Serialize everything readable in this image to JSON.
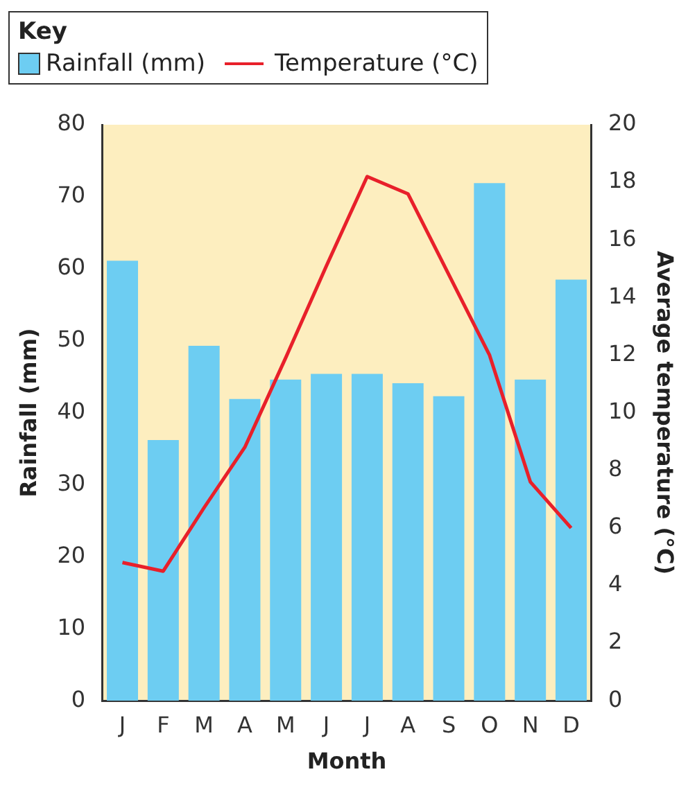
{
  "chart_data": {
    "type": "bar",
    "xlabel": "Month",
    "ylabel": "Rainfall (mm)",
    "y2label": "Average temperature (°C)",
    "legend_title": "Key",
    "legend": "top left",
    "categories": [
      "J",
      "F",
      "M",
      "A",
      "M",
      "J",
      "J",
      "A",
      "S",
      "O",
      "N",
      "D"
    ],
    "series": [
      {
        "name": "Rainfall (mm)",
        "color": "#6dcdf2",
        "values": [
          61.1,
          36.2,
          49.3,
          41.9,
          44.6,
          45.4,
          45.4,
          44.1,
          42.3,
          71.9,
          44.6,
          58.5
        ]
      },
      {
        "name": "Temperature (°C)",
        "type": "line",
        "axis": "y2",
        "color": "#e8202a",
        "values": [
          4.8,
          4.5,
          6.7,
          8.8,
          11.9,
          15.1,
          18.2,
          17.6,
          14.8,
          12.0,
          7.6,
          6.0
        ]
      }
    ],
    "ylim": [
      0,
      80
    ],
    "yticks": [
      0,
      10,
      20,
      30,
      40,
      50,
      60,
      70,
      80
    ],
    "y2lim": [
      0,
      20
    ],
    "y2ticks": [
      0,
      2,
      4,
      6,
      8,
      10,
      12,
      14,
      16,
      18,
      20
    ],
    "grid": false,
    "marker": "none",
    "line_style": "solid"
  }
}
